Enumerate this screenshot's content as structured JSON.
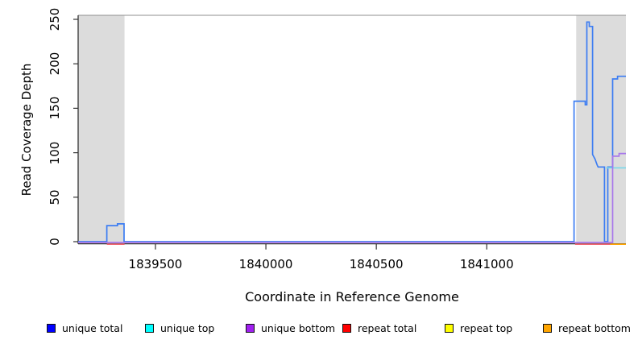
{
  "chart_data": {
    "type": "line",
    "title": "",
    "xlabel": "Coordinate in Reference Genome",
    "ylabel": "Read Coverage Depth",
    "xlim": [
      1839150,
      1841630
    ],
    "ylim": [
      0,
      250
    ],
    "xticks": [
      1839500,
      1840000,
      1840500,
      1841000
    ],
    "xtick_labels": [
      "1839500",
      "1840000",
      "1840500",
      "1841000"
    ],
    "yticks": [
      0,
      50,
      100,
      150,
      200,
      250
    ],
    "ytick_labels": [
      "0",
      "50",
      "100",
      "150",
      "200",
      "250"
    ],
    "grid": false,
    "legend_position": "bottom",
    "plot_bg": "#ffffff",
    "highlighted_regions": [
      {
        "start": 1839150,
        "end": 1839360,
        "color": "#dcdcdc"
      },
      {
        "start": 1841405,
        "end": 1841630,
        "color": "#dcdcdc"
      }
    ],
    "series": [
      {
        "name": "unique total",
        "legend_color": "#0000ff",
        "line_color": "#3c7df2",
        "segments": [
          [
            [
              1839150,
              0
            ],
            [
              1839280,
              0
            ],
            [
              1839280,
              18
            ],
            [
              1839328,
              18
            ],
            [
              1839328,
              20
            ],
            [
              1839358,
              20
            ],
            [
              1839358,
              0
            ],
            [
              1841395,
              0
            ],
            [
              1841395,
              158
            ],
            [
              1841446,
              158
            ],
            [
              1841446,
              154
            ],
            [
              1841453,
              154
            ],
            [
              1841453,
              247
            ],
            [
              1841464,
              247
            ],
            [
              1841464,
              242
            ],
            [
              1841479,
              242
            ],
            [
              1841479,
              98
            ],
            [
              1841490,
              93
            ],
            [
              1841500,
              86
            ],
            [
              1841504,
              84
            ],
            [
              1841533,
              84
            ],
            [
              1841533,
              0
            ],
            [
              1841548,
              0
            ],
            [
              1841548,
              84
            ],
            [
              1841570,
              84
            ],
            [
              1841570,
              183
            ],
            [
              1841592,
              183
            ],
            [
              1841592,
              186
            ],
            [
              1841630,
              186
            ]
          ]
        ]
      },
      {
        "name": "unique top",
        "legend_color": "#00ffff",
        "line_color": "#7fd8ea",
        "segments": [
          [
            [
              1841540,
              83
            ],
            [
              1841630,
              83
            ]
          ]
        ]
      },
      {
        "name": "unique bottom",
        "legend_color": "#a020f0",
        "line_color": "#a878ea",
        "segments": [
          [
            [
              1839150,
              0
            ],
            [
              1841570,
              0
            ],
            [
              1841570,
              97
            ],
            [
              1841599,
              97
            ],
            [
              1841599,
              100
            ],
            [
              1841630,
              100
            ]
          ]
        ]
      },
      {
        "name": "repeat total",
        "legend_color": "#ff0000",
        "line_color": "#f0636e",
        "segments": [
          [
            [
              1839280,
              0
            ],
            [
              1839360,
              0
            ]
          ],
          [
            [
              1841400,
              0
            ],
            [
              1841577,
              0
            ]
          ]
        ]
      },
      {
        "name": "repeat top",
        "legend_color": "#ffff00",
        "line_color": "#ffff00",
        "segments": []
      },
      {
        "name": "repeat bottom",
        "legend_color": "#ffa500",
        "line_color": "#ffa500",
        "segments": [
          [
            [
              1841559,
              0
            ],
            [
              1841630,
              0
            ]
          ]
        ]
      }
    ]
  }
}
